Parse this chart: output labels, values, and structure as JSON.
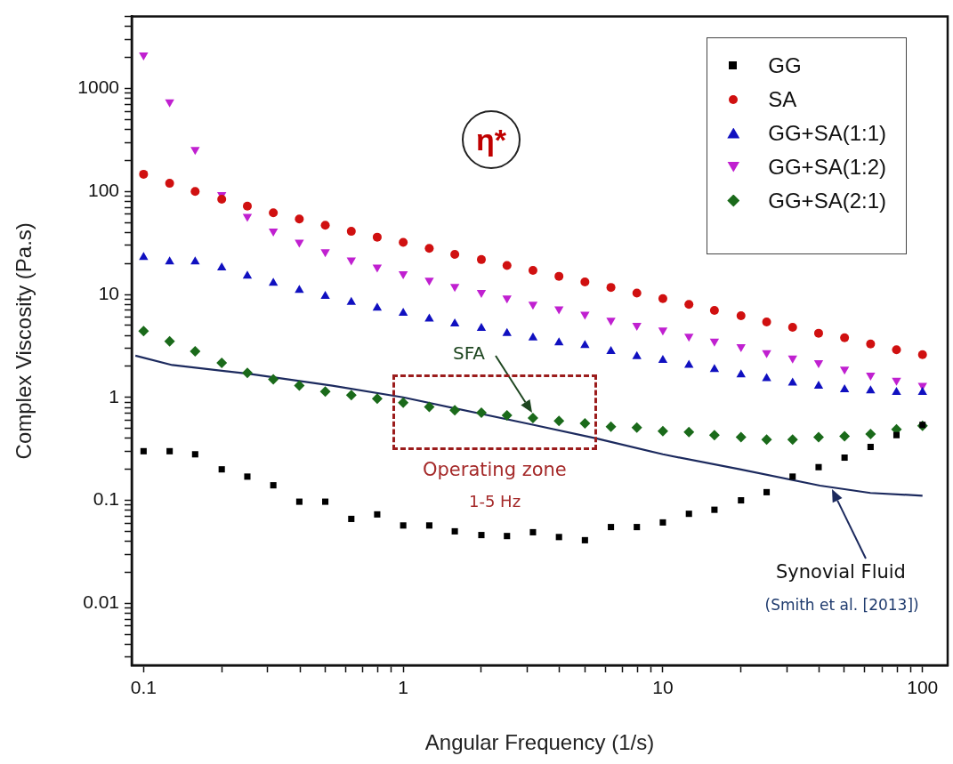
{
  "chart_data": {
    "type": "scatter",
    "xlabel": "Angular Frequency (1/s)",
    "ylabel": "Complex Viscosity (Pa.s)",
    "log": "xy",
    "grid": false,
    "legend": "top right",
    "x": [
      0.1,
      0.126,
      0.158,
      0.2,
      0.251,
      0.316,
      0.398,
      0.501,
      0.631,
      0.794,
      1,
      1.26,
      1.58,
      2,
      2.51,
      3.16,
      3.98,
      5.01,
      6.31,
      7.94,
      10,
      12.6,
      15.8,
      20,
      25.1,
      31.6,
      39.8,
      50.1,
      63.1,
      79.4,
      100
    ],
    "xlim": [
      0.09,
      125
    ],
    "xticks": [
      0.1,
      {
        "value": 0.2,
        "label": null
      },
      {
        "value": 0.3,
        "label": null
      },
      {
        "value": 0.4,
        "label": null
      },
      {
        "value": 0.5,
        "label": null
      },
      {
        "value": 0.6,
        "label": null
      },
      {
        "value": 0.7,
        "label": null
      },
      {
        "value": 0.8,
        "label": null
      },
      {
        "value": 0.9,
        "label": null
      },
      1,
      {
        "value": 2,
        "label": null
      },
      {
        "value": 3,
        "label": null
      },
      {
        "value": 4,
        "label": null
      },
      {
        "value": 5,
        "label": null
      },
      {
        "value": 6,
        "label": null
      },
      {
        "value": 7,
        "label": null
      },
      {
        "value": 8,
        "label": null
      },
      {
        "value": 9,
        "label": null
      },
      10,
      {
        "value": 20,
        "label": null
      },
      {
        "value": 30,
        "label": null
      },
      {
        "value": 40,
        "label": null
      },
      {
        "value": 50,
        "label": null
      },
      {
        "value": 60,
        "label": null
      },
      {
        "value": 70,
        "label": null
      },
      {
        "value": 80,
        "label": null
      },
      {
        "value": 90,
        "label": null
      },
      100
    ],
    "ylim": [
      0.0025,
      5000
    ],
    "yticks": [
      {
        "value": 0.003,
        "label": null
      },
      {
        "value": 0.004,
        "label": null
      },
      {
        "value": 0.005,
        "label": null
      },
      {
        "value": 0.006,
        "label": null
      },
      {
        "value": 0.007,
        "label": null
      },
      {
        "value": 0.008,
        "label": null
      },
      {
        "value": 0.009,
        "label": null
      },
      0.01,
      {
        "value": 0.02,
        "label": null
      },
      {
        "value": 0.03,
        "label": null
      },
      {
        "value": 0.04,
        "label": null
      },
      {
        "value": 0.05,
        "label": null
      },
      {
        "value": 0.06,
        "label": null
      },
      {
        "value": 0.07,
        "label": null
      },
      {
        "value": 0.08,
        "label": null
      },
      {
        "value": 0.09,
        "label": null
      },
      0.1,
      {
        "value": 0.2,
        "label": null
      },
      {
        "value": 0.3,
        "label": null
      },
      {
        "value": 0.4,
        "label": null
      },
      {
        "value": 0.5,
        "label": null
      },
      {
        "value": 0.6,
        "label": null
      },
      {
        "value": 0.7,
        "label": null
      },
      {
        "value": 0.8,
        "label": null
      },
      {
        "value": 0.9,
        "label": null
      },
      1,
      {
        "value": 2,
        "label": null
      },
      {
        "value": 3,
        "label": null
      },
      {
        "value": 4,
        "label": null
      },
      {
        "value": 5,
        "label": null
      },
      {
        "value": 6,
        "label": null
      },
      {
        "value": 7,
        "label": null
      },
      {
        "value": 8,
        "label": null
      },
      {
        "value": 9,
        "label": null
      },
      10,
      {
        "value": 20,
        "label": null
      },
      {
        "value": 30,
        "label": null
      },
      {
        "value": 40,
        "label": null
      },
      {
        "value": 50,
        "label": null
      },
      {
        "value": 60,
        "label": null
      },
      {
        "value": 70,
        "label": null
      },
      {
        "value": 80,
        "label": null
      },
      {
        "value": 90,
        "label": null
      },
      100,
      {
        "value": 200,
        "label": null
      },
      {
        "value": 300,
        "label": null
      },
      {
        "value": 400,
        "label": null
      },
      {
        "value": 500,
        "label": null
      },
      {
        "value": 600,
        "label": null
      },
      {
        "value": 700,
        "label": null
      },
      {
        "value": 800,
        "label": null
      },
      {
        "value": 900,
        "label": null
      },
      1000,
      {
        "value": 2000,
        "label": null
      },
      {
        "value": 3000,
        "label": null
      },
      {
        "value": 4000,
        "label": null
      },
      {
        "value": 5000,
        "label": null
      }
    ],
    "series": [
      {
        "name": "GG",
        "color": "#000000",
        "marker": "square",
        "values": [
          0.3,
          0.3,
          0.28,
          0.2,
          0.17,
          0.14,
          0.097,
          0.097,
          0.066,
          0.073,
          0.057,
          0.057,
          0.05,
          0.046,
          0.045,
          0.049,
          0.044,
          0.041,
          0.055,
          0.055,
          0.061,
          0.074,
          0.081,
          0.1,
          0.12,
          0.17,
          0.21,
          0.26,
          0.33,
          0.43,
          0.54
        ]
      },
      {
        "name": "SA",
        "color": "#d01010",
        "marker": "circle",
        "values": [
          147,
          120,
          100,
          84,
          72,
          62,
          54,
          47,
          41,
          36,
          32,
          28,
          24.5,
          21.8,
          19.1,
          17.1,
          15,
          13.2,
          11.7,
          10.3,
          9.1,
          8,
          7,
          6.2,
          5.4,
          4.8,
          4.2,
          3.8,
          3.3,
          2.9,
          2.6
        ]
      },
      {
        "name": "GG+SA(1:1)",
        "color": "#1010c0",
        "marker": "triangle",
        "values": [
          23,
          20.8,
          20.8,
          18.2,
          15.1,
          12.9,
          11,
          9.6,
          8.4,
          7.4,
          6.6,
          5.8,
          5.2,
          4.7,
          4.2,
          3.8,
          3.4,
          3.2,
          2.8,
          2.5,
          2.3,
          2.06,
          1.87,
          1.66,
          1.53,
          1.38,
          1.29,
          1.19,
          1.16,
          1.12,
          1.12
        ]
      },
      {
        "name": "GG+SA(1:2)",
        "color": "#c020d0",
        "marker": "triangle-down",
        "values": [
          2110,
          738,
          255,
          93,
          57,
          41,
          32,
          25.9,
          21.5,
          18.4,
          15.8,
          13.7,
          11.9,
          10.4,
          9.2,
          8,
          7.2,
          6.4,
          5.6,
          5,
          4.5,
          3.9,
          3.5,
          3.1,
          2.7,
          2.4,
          2.16,
          1.87,
          1.64,
          1.46,
          1.3
        ]
      },
      {
        "name": "GG+SA(2:1)",
        "color": "#1a6a1a",
        "marker": "diamond",
        "values": [
          4.4,
          3.5,
          2.8,
          2.16,
          1.73,
          1.5,
          1.3,
          1.14,
          1.05,
          0.97,
          0.89,
          0.81,
          0.75,
          0.71,
          0.67,
          0.63,
          0.59,
          0.56,
          0.52,
          0.51,
          0.47,
          0.46,
          0.43,
          0.41,
          0.39,
          0.39,
          0.41,
          0.42,
          0.44,
          0.49,
          0.53
        ]
      },
      {
        "type": "line",
        "color": "#1c2a5e",
        "marker": "none",
        "line_style": "solid",
        "x": [
          0.093,
          0.129,
          0.256,
          0.533,
          1,
          3.18,
          5.53,
          10,
          19.8,
          40.3,
          63,
          100
        ],
        "values": [
          2.54,
          2.06,
          1.69,
          1.3,
          1,
          0.54,
          0.4,
          0.28,
          0.2,
          0.139,
          0.118,
          0.111
        ]
      }
    ],
    "annotations": [
      "η*",
      "SFA",
      "Operating zone",
      "1-5 Hz",
      "Synovial Fluid",
      "(Smith et al. [2013])"
    ]
  }
}
